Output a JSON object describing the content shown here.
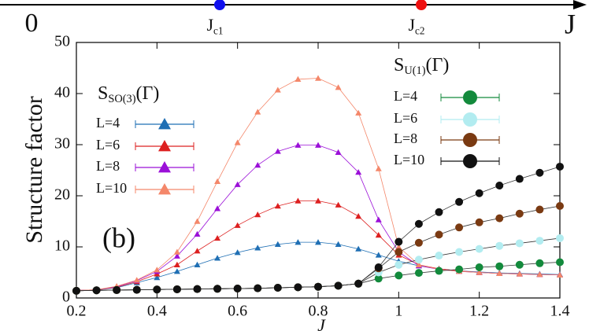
{
  "chart_data": {
    "type": "line",
    "top_axis": {
      "start_label": "0",
      "end_label": "J",
      "markers": [
        {
          "symbol": "J",
          "subscript": "c1",
          "color": "#1010ee"
        },
        {
          "symbol": "J",
          "subscript": "c2",
          "color": "#ee1010"
        }
      ]
    },
    "panel_label": "(b)",
    "y_label": "Structure factor",
    "x_label": "J",
    "x": [
      0.2,
      0.25,
      0.3,
      0.35,
      0.4,
      0.45,
      0.5,
      0.55,
      0.6,
      0.65,
      0.7,
      0.75,
      0.8,
      0.85,
      0.9,
      0.95,
      1.0,
      1.05,
      1.1,
      1.15,
      1.2,
      1.25,
      1.3,
      1.35,
      1.4
    ],
    "xlim": [
      0.2,
      1.4
    ],
    "xticks": [
      0.2,
      0.4,
      0.6,
      0.8,
      1,
      1.2,
      1.4
    ],
    "ylim": [
      0,
      50
    ],
    "yticks": [
      0,
      10,
      20,
      30,
      40,
      50
    ],
    "series_groups": [
      {
        "title": {
          "symbol": "S",
          "subscript": "SO(3)",
          "suffix": "(Γ)"
        },
        "marker": "triangle",
        "series": [
          {
            "name": "L=4",
            "color": "#1f6fb4",
            "values": [
              1.5,
              1.6,
              2.0,
              3.0,
              4.0,
              5.2,
              6.5,
              7.8,
              8.9,
              9.8,
              10.5,
              10.9,
              10.9,
              10.5,
              9.6,
              8.4,
              7.2,
              6.3,
              5.7,
              5.3,
              5.1,
              4.9,
              4.8,
              4.7,
              4.6
            ]
          },
          {
            "name": "L=6",
            "color": "#dd2020",
            "values": [
              1.5,
              1.6,
              2.1,
              3.2,
              4.7,
              6.5,
              9.2,
              11.7,
              14.2,
              16.3,
              18.0,
              19.0,
              19.0,
              18.2,
              16.0,
              12.3,
              8.4,
              6.5,
              5.7,
              5.3,
              5.0,
              4.8,
              4.7,
              4.6,
              4.5
            ]
          },
          {
            "name": "L=8",
            "color": "#9b10d8",
            "values": [
              1.5,
              1.6,
              2.2,
              3.4,
              5.2,
              8.2,
              12.5,
              17.5,
              22.2,
              26.0,
              28.7,
              29.9,
              29.9,
              28.5,
              24.6,
              15.3,
              9.0,
              6.3,
              5.6,
              5.2,
              5.0,
              4.8,
              4.7,
              4.6,
              4.5
            ]
          },
          {
            "name": "L=10",
            "color": "#f4876a",
            "values": [
              1.5,
              1.6,
              2.3,
              3.5,
              5.5,
              9.0,
              15.0,
              22.8,
              30.4,
              36.4,
              40.7,
              42.8,
              43.0,
              41.2,
              36.2,
              25.3,
              10.0,
              6.5,
              5.6,
              5.2,
              5.0,
              4.8,
              4.7,
              4.6,
              4.5
            ]
          }
        ]
      },
      {
        "title": {
          "symbol": "S",
          "subscript": "U(1)",
          "suffix": "(Γ)"
        },
        "marker": "circle",
        "series": [
          {
            "name": "L=4",
            "color": "#138a3c",
            "values": [
              1.4,
              1.5,
              1.55,
              1.6,
              1.65,
              1.7,
              1.75,
              1.8,
              1.85,
              1.9,
              2.0,
              2.1,
              2.2,
              2.4,
              2.8,
              3.8,
              4.4,
              4.9,
              5.3,
              5.6,
              6.0,
              6.2,
              6.5,
              6.8,
              7.0
            ]
          },
          {
            "name": "L=6",
            "color": "#b2ecf0",
            "values": [
              1.4,
              1.5,
              1.55,
              1.6,
              1.65,
              1.7,
              1.75,
              1.8,
              1.85,
              1.9,
              2.0,
              2.1,
              2.2,
              2.4,
              2.8,
              5.0,
              6.5,
              7.5,
              8.3,
              9.0,
              9.6,
              10.2,
              10.7,
              11.2,
              11.7
            ]
          },
          {
            "name": "L=8",
            "color": "#7a3a12",
            "values": [
              1.4,
              1.5,
              1.55,
              1.6,
              1.65,
              1.7,
              1.75,
              1.8,
              1.85,
              1.9,
              2.0,
              2.1,
              2.2,
              2.4,
              2.8,
              5.8,
              9.0,
              10.8,
              12.4,
              13.8,
              14.8,
              15.6,
              16.5,
              17.3,
              18.0
            ]
          },
          {
            "name": "L=10",
            "color": "#111111",
            "values": [
              1.4,
              1.5,
              1.55,
              1.6,
              1.65,
              1.7,
              1.75,
              1.8,
              1.85,
              1.9,
              2.0,
              2.1,
              2.2,
              2.4,
              2.8,
              6.0,
              11.0,
              14.5,
              16.8,
              18.8,
              20.5,
              22.0,
              23.3,
              24.5,
              25.7
            ]
          }
        ]
      }
    ]
  }
}
